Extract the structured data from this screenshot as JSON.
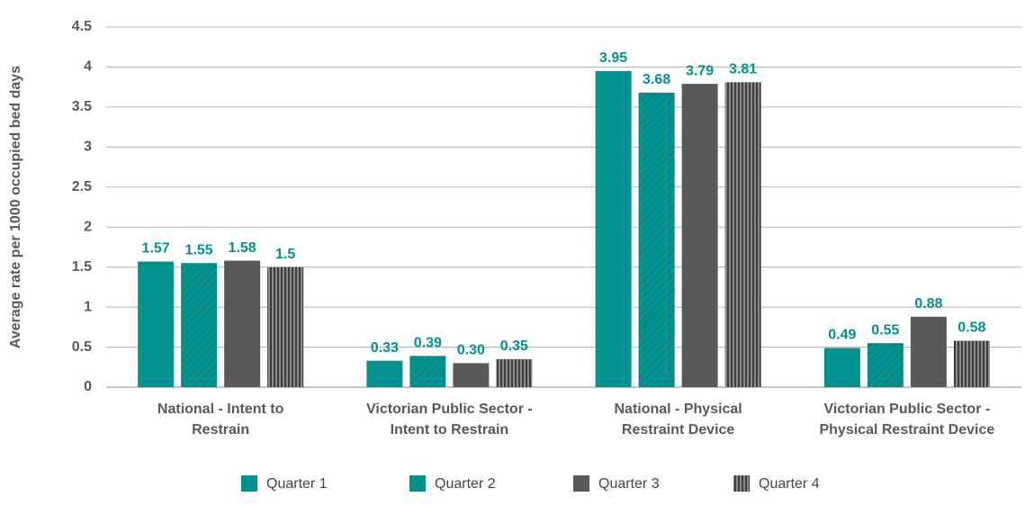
{
  "chart_data": {
    "type": "bar",
    "ylabel": "Average rate per 1000 occupied bed days",
    "categories": [
      [
        "National - Intent to",
        "Restrain"
      ],
      [
        "Victorian Public Sector -",
        "Intent to Restrain"
      ],
      [
        "National - Physical",
        "Restraint Device"
      ],
      [
        "Victorian Public Sector -",
        "Physical Restraint Device"
      ]
    ],
    "series": [
      {
        "name": "Quarter 1",
        "color": "#00928f",
        "pattern": "solid",
        "values": [
          1.57,
          0.33,
          3.95,
          0.49
        ]
      },
      {
        "name": "Quarter 2",
        "color": "#00928f",
        "pattern": "diagonal",
        "values": [
          1.55,
          0.39,
          3.68,
          0.55
        ]
      },
      {
        "name": "Quarter 3",
        "color": "#58595b",
        "pattern": "solid",
        "values": [
          1.58,
          0.3,
          3.79,
          0.88
        ],
        "value_labels": [
          "1.58",
          "0.30",
          "3.79",
          "0.88"
        ]
      },
      {
        "name": "Quarter 4",
        "color": "#58595b",
        "pattern": "vertical",
        "values": [
          1.5,
          0.35,
          3.81,
          0.58
        ]
      }
    ],
    "label_color": "#00928f",
    "ylim": [
      0,
      4.5
    ],
    "yticks": [
      0,
      0.5,
      1,
      1.5,
      2,
      2.5,
      3,
      3.5,
      4,
      4.5
    ],
    "grid": true,
    "legend": "bottom"
  }
}
